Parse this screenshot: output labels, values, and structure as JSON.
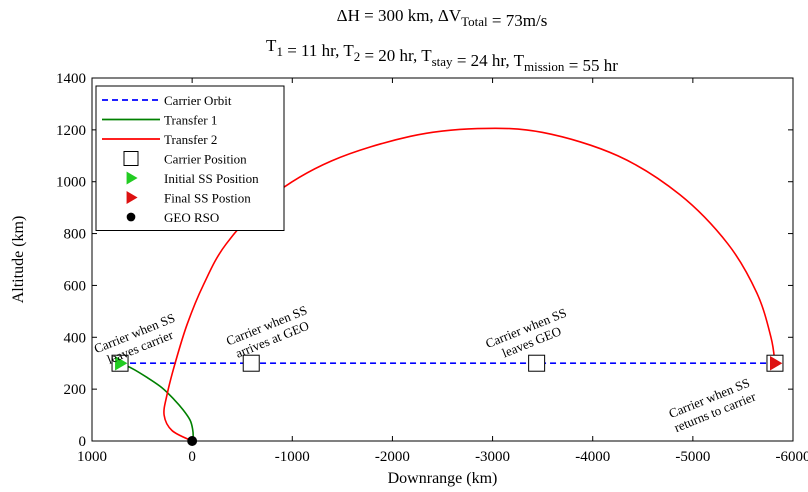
{
  "chart_data": {
    "type": "line",
    "title_line1": "ΔH = 300 km, ΔV_Total = 73m/s",
    "title_line2": "T_1 = 11 hr, T_2 = 20 hr, T_stay = 24 hr, T_mission = 55 hr",
    "xlabel": "Downrange (km)",
    "ylabel": "Altitude (km)",
    "xlim": [
      1000,
      -6000
    ],
    "ylim": [
      0,
      1400
    ],
    "x_direction": "reversed",
    "xticks": [
      1000,
      0,
      -1000,
      -2000,
      -3000,
      -4000,
      -5000,
      -6000
    ],
    "xtick_labels": [
      "1000",
      "0",
      "-1000",
      "-2000",
      "-3000",
      "-4000",
      "-5000",
      "-6000"
    ],
    "yticks": [
      0,
      200,
      400,
      600,
      800,
      1000,
      1200,
      1400
    ],
    "ytick_labels": [
      "0",
      "200",
      "400",
      "600",
      "800",
      "1000",
      "1200",
      "1400"
    ],
    "grid": false,
    "legend_position": "top-left",
    "series": [
      {
        "name": "Carrier Orbit",
        "style": "dashed",
        "color": "#0000ff",
        "x": [
          720,
          -5820
        ],
        "y": [
          300,
          300
        ]
      },
      {
        "name": "Transfer 1",
        "style": "solid",
        "color": "#008000",
        "x": [
          720,
          600,
          450,
          300,
          180,
          90,
          20,
          -5,
          -10,
          0
        ],
        "y": [
          300,
          280,
          245,
          205,
          160,
          120,
          80,
          45,
          15,
          0
        ]
      },
      {
        "name": "Transfer 2",
        "style": "solid",
        "color": "#ff0000",
        "x": [
          0,
          200,
          280,
          250,
          170,
          50,
          -110,
          -340,
          -780,
          -1390,
          -2180,
          -2850,
          -3500,
          -4250,
          -4870,
          -5350,
          -5640,
          -5780,
          -5820
        ],
        "y": [
          0,
          40,
          100,
          180,
          300,
          450,
          600,
          760,
          940,
          1080,
          1175,
          1205,
          1190,
          1100,
          950,
          760,
          570,
          400,
          300
        ]
      },
      {
        "name": "Carrier Position",
        "marker": "square",
        "color": "#ffffff",
        "x": [
          720,
          -590,
          -3440,
          -5820
        ],
        "y": [
          300,
          300,
          300,
          300
        ]
      },
      {
        "name": "Initial SS Position",
        "marker": "triangle-right",
        "color": "#22cc22",
        "x": [
          720
        ],
        "y": [
          300
        ]
      },
      {
        "name": "Final SS Postion",
        "marker": "triangle-right",
        "color": "#dd1111",
        "x": [
          -5820
        ],
        "y": [
          300
        ]
      },
      {
        "name": "GEO RSO",
        "marker": "circle",
        "color": "#000000",
        "x": [
          0
        ],
        "y": [
          0
        ]
      }
    ],
    "annotations": [
      {
        "line1": "Carrier when SS",
        "line2": "leaves carrier",
        "x": 560,
        "y": 400
      },
      {
        "line1": "Carrier when SS",
        "line2": "arrives at GEO",
        "x": -760,
        "y": 430
      },
      {
        "line1": "Carrier when SS",
        "line2": "leaves GEO",
        "x": -3350,
        "y": 420
      },
      {
        "line1": "Carrier when SS",
        "line2": "returns to carrier",
        "x": -5180,
        "y": 150
      }
    ]
  }
}
